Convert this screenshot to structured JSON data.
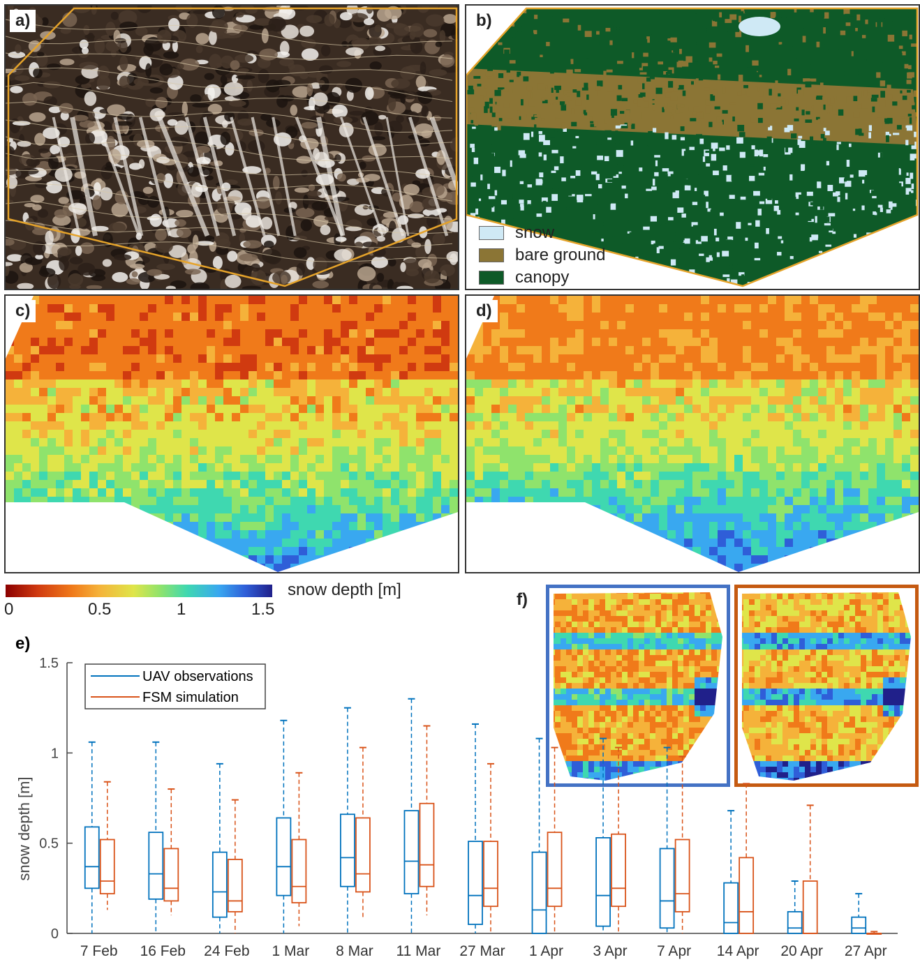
{
  "panels": {
    "a": {
      "label": "a)"
    },
    "b": {
      "label": "b)"
    },
    "c": {
      "label": "c)"
    },
    "d": {
      "label": "d)"
    },
    "e": {
      "label": "e)"
    },
    "f": {
      "label": "f)"
    }
  },
  "classification_legend": [
    {
      "label": "snow",
      "color": "#cfe9f5"
    },
    {
      "label": "bare ground",
      "color": "#8b7535"
    },
    {
      "label": "canopy",
      "color": "#0e5a28"
    }
  ],
  "colorbar": {
    "label": "snow depth [m]",
    "ticks": [
      "0",
      "0.5",
      "1",
      "1.5"
    ],
    "range": [
      0,
      1.5
    ]
  },
  "colors": {
    "uav": "#0072bd",
    "fsm": "#d95319",
    "outline_orange": "#e5a32a",
    "inset_obs_border": "#4472c4",
    "inset_sim_border": "#c55a11"
  },
  "chart_data": {
    "type": "box",
    "ylabel": "snow depth [m]",
    "ylim": [
      0,
      1.5
    ],
    "yticks": [
      "0",
      "0.5",
      "1",
      "1.5"
    ],
    "categories": [
      "7 Feb",
      "16 Feb",
      "24 Feb",
      "1 Mar",
      "8 Mar",
      "11 Mar",
      "27 Mar",
      "1 Apr",
      "3 Apr",
      "7 Apr",
      "14 Apr",
      "20 Apr",
      "27 Apr"
    ],
    "legend": {
      "position": "top-left"
    },
    "series": [
      {
        "name": "UAV observations",
        "boxes": [
          {
            "min": 0,
            "q1": 0.25,
            "median": 0.37,
            "q3": 0.59,
            "max": 1.06
          },
          {
            "min": 0,
            "q1": 0.19,
            "median": 0.33,
            "q3": 0.56,
            "max": 1.06
          },
          {
            "min": 0,
            "q1": 0.09,
            "median": 0.23,
            "q3": 0.45,
            "max": 0.94
          },
          {
            "min": 0,
            "q1": 0.21,
            "median": 0.37,
            "q3": 0.64,
            "max": 1.18
          },
          {
            "min": 0,
            "q1": 0.26,
            "median": 0.42,
            "q3": 0.66,
            "max": 1.25
          },
          {
            "min": 0,
            "q1": 0.22,
            "median": 0.4,
            "q3": 0.68,
            "max": 1.3
          },
          {
            "min": 0,
            "q1": 0.05,
            "median": 0.21,
            "q3": 0.51,
            "max": 1.16
          },
          {
            "min": 0,
            "q1": 0.0,
            "median": 0.13,
            "q3": 0.45,
            "max": 1.08
          },
          {
            "min": 0,
            "q1": 0.04,
            "median": 0.21,
            "q3": 0.53,
            "max": 1.08
          },
          {
            "min": 0,
            "q1": 0.03,
            "median": 0.18,
            "q3": 0.47,
            "max": 1.03
          },
          {
            "min": 0,
            "q1": 0.0,
            "median": 0.06,
            "q3": 0.28,
            "max": 0.68
          },
          {
            "min": 0,
            "q1": 0.0,
            "median": 0.03,
            "q3": 0.12,
            "max": 0.29
          },
          {
            "min": 0,
            "q1": 0.0,
            "median": 0.03,
            "q3": 0.09,
            "max": 0.22
          }
        ]
      },
      {
        "name": "FSM simulation",
        "boxes": [
          {
            "min": 0.13,
            "q1": 0.22,
            "median": 0.29,
            "q3": 0.52,
            "max": 0.84
          },
          {
            "min": 0.1,
            "q1": 0.18,
            "median": 0.25,
            "q3": 0.47,
            "max": 0.8
          },
          {
            "min": 0.0,
            "q1": 0.12,
            "median": 0.18,
            "q3": 0.41,
            "max": 0.74
          },
          {
            "min": 0.04,
            "q1": 0.17,
            "median": 0.26,
            "q3": 0.52,
            "max": 0.89
          },
          {
            "min": 0.09,
            "q1": 0.23,
            "median": 0.33,
            "q3": 0.64,
            "max": 1.03
          },
          {
            "min": 0.1,
            "q1": 0.26,
            "median": 0.38,
            "q3": 0.72,
            "max": 1.15
          },
          {
            "min": 0.0,
            "q1": 0.15,
            "median": 0.25,
            "q3": 0.51,
            "max": 0.94
          },
          {
            "min": 0.0,
            "q1": 0.15,
            "median": 0.25,
            "q3": 0.56,
            "max": 1.03
          },
          {
            "min": 0.0,
            "q1": 0.15,
            "median": 0.25,
            "q3": 0.55,
            "max": 1.03
          },
          {
            "min": 0.0,
            "q1": 0.12,
            "median": 0.22,
            "q3": 0.52,
            "max": 0.98
          },
          {
            "min": 0.0,
            "q1": 0.0,
            "median": 0.12,
            "q3": 0.42,
            "max": 0.83
          },
          {
            "min": 0.0,
            "q1": 0.0,
            "median": 0.0,
            "q3": 0.29,
            "max": 0.71
          },
          {
            "min": 0.0,
            "q1": 0.0,
            "median": 0.0,
            "q3": 0.0,
            "max": 0.01
          }
        ]
      }
    ]
  }
}
